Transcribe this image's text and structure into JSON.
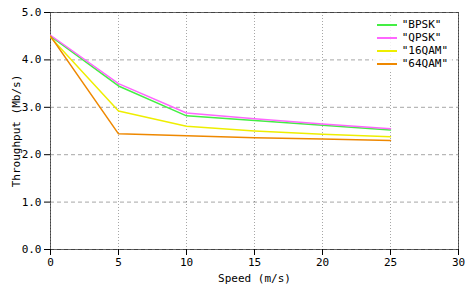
{
  "chart_data": {
    "type": "line",
    "xlabel": "Speed (m/s)",
    "ylabel": "Throughput (Mb/s)",
    "x": [
      0,
      5,
      10,
      15,
      20,
      25
    ],
    "series": [
      {
        "name": "\"BPSK\"",
        "color": "#44ee44",
        "values": [
          4.5,
          3.45,
          2.82,
          2.72,
          2.62,
          2.52
        ]
      },
      {
        "name": "\"QPSK\"",
        "color": "#ff66ff",
        "values": [
          4.52,
          3.5,
          2.88,
          2.76,
          2.65,
          2.55
        ]
      },
      {
        "name": "\"16QAM\"",
        "color": "#eeee00",
        "values": [
          4.48,
          2.92,
          2.6,
          2.5,
          2.43,
          2.38
        ]
      },
      {
        "name": "\"64QAM\"",
        "color": "#ee8800",
        "values": [
          4.5,
          2.44,
          2.4,
          2.36,
          2.33,
          2.3
        ]
      }
    ],
    "xlim": [
      0,
      30
    ],
    "ylim": [
      0,
      5
    ],
    "xticks": [
      0,
      5,
      10,
      15,
      20,
      25,
      30
    ],
    "yticks": [
      0,
      1,
      2,
      3,
      4,
      5
    ],
    "grid": true,
    "legend": "upper right"
  }
}
